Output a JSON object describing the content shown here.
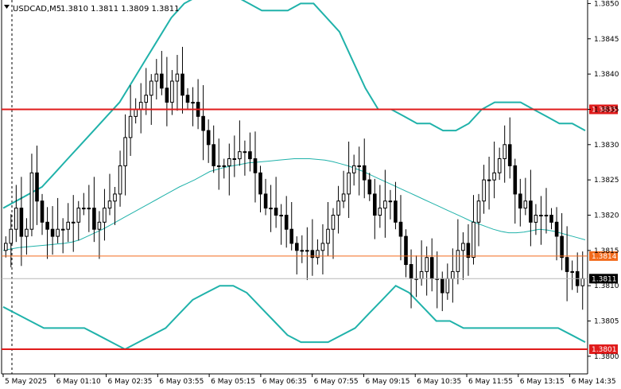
{
  "header": {
    "symbol_timeframe": "USDCAD,M5",
    "ohlc": "1.3810 1.3811 1.3809 1.3811"
  },
  "chart_data": {
    "type": "candlestick",
    "symbol": "USDCAD",
    "timeframe": "M5",
    "ylim": [
      1.37975,
      1.38505
    ],
    "y_ticks": [
      "1.3850",
      "1.3845",
      "1.3840",
      "1.3835",
      "1.3830",
      "1.3825",
      "1.3820",
      "1.3815",
      "1.3810",
      "1.3805",
      "1.3800"
    ],
    "x_ticks": [
      "5 May 2025",
      "6 May 01:10",
      "6 May 02:35",
      "6 May 03:55",
      "6 May 05:15",
      "6 May 06:35",
      "6 May 07:55",
      "6 May 09:15",
      "6 May 10:35",
      "6 May 11:55",
      "6 May 13:15",
      "6 May 14:35"
    ],
    "levels": [
      {
        "value": 1.3835,
        "label": "1.3835",
        "color": "#e01b1b"
      },
      {
        "value": 1.3801,
        "label": "1.3801",
        "color": "#e01b1b"
      },
      {
        "value": 1.38142,
        "label": "1.3814",
        "color": "#f26a1b"
      }
    ],
    "current_price": {
      "value": 1.3811,
      "label": "1.3811"
    },
    "candle_color": "#000000",
    "band_color": "#20b2aa",
    "close": [
      1.3816,
      1.3818,
      1.3821,
      1.3817,
      1.3818,
      1.3826,
      1.3822,
      1.3819,
      1.3818,
      1.3817,
      1.3818,
      1.3818,
      1.3819,
      1.3819,
      1.3821,
      1.3821,
      1.3821,
      1.3818,
      1.3819,
      1.3821,
      1.3822,
      1.3823,
      1.3827,
      1.3831,
      1.3834,
      1.3835,
      1.3836,
      1.3837,
      1.3839,
      1.384,
      1.3838,
      1.3836,
      1.3839,
      1.384,
      1.3837,
      1.3836,
      1.3836,
      1.3834,
      1.3832,
      1.383,
      1.3827,
      1.3827,
      1.3827,
      1.3828,
      1.3828,
      1.3829,
      1.3829,
      1.3828,
      1.3826,
      1.3823,
      1.3821,
      1.3821,
      1.382,
      1.382,
      1.3818,
      1.3816,
      1.3815,
      1.3815,
      1.3815,
      1.3814,
      1.3815,
      1.3816,
      1.3818,
      1.382,
      1.3822,
      1.3823,
      1.3826,
      1.3827,
      1.3827,
      1.3825,
      1.3823,
      1.382,
      1.3821,
      1.3822,
      1.3822,
      1.3819,
      1.3817,
      1.3813,
      1.3811,
      1.3811,
      1.3812,
      1.3814,
      1.3811,
      1.3811,
      1.3809,
      1.3811,
      1.3812,
      1.3815,
      1.3816,
      1.3814,
      1.3819,
      1.3822,
      1.3825,
      1.3825,
      1.3826,
      1.3828,
      1.383,
      1.3827,
      1.3823,
      1.3821,
      1.3822,
      1.3819,
      1.382,
      1.382,
      1.382,
      1.3819,
      1.3817,
      1.3814,
      1.3812,
      1.3812,
      1.381,
      1.3811
    ],
    "mid_band": [
      1.3815,
      1.38152,
      1.38154,
      1.38155,
      1.38156,
      1.38157,
      1.38158,
      1.38159,
      1.3816,
      1.38162,
      1.38165,
      1.3817,
      1.38175,
      1.3818,
      1.38186,
      1.38192,
      1.38198,
      1.38204,
      1.3821,
      1.38216,
      1.38222,
      1.38228,
      1.38234,
      1.3824,
      1.38245,
      1.3825,
      1.38256,
      1.38262,
      1.38265,
      1.38268,
      1.3827,
      1.38272,
      1.38274,
      1.38275,
      1.38276,
      1.38277,
      1.38278,
      1.38279,
      1.3828,
      1.3828,
      1.3828,
      1.38279,
      1.38278,
      1.38276,
      1.38273,
      1.3827,
      1.38266,
      1.38262,
      1.38257,
      1.38252,
      1.38247,
      1.38242,
      1.38237,
      1.38232,
      1.38227,
      1.38222,
      1.38217,
      1.38212,
      1.38207,
      1.38202,
      1.38197,
      1.38192,
      1.38188,
      1.38184,
      1.3818,
      1.38177,
      1.38175,
      1.38175,
      1.38176,
      1.38178,
      1.3818,
      1.38179,
      1.38177,
      1.38174,
      1.38171,
      1.38168,
      1.38165
    ],
    "upper_band": [
      1.3821,
      1.3822,
      1.3823,
      1.3824,
      1.3826,
      1.3828,
      1.383,
      1.3832,
      1.3834,
      1.3836,
      1.3839,
      1.3842,
      1.3845,
      1.3848,
      1.385,
      1.3851,
      1.3851,
      1.3851,
      1.3851,
      1.385,
      1.3849,
      1.3849,
      1.3849,
      1.385,
      1.385,
      1.3848,
      1.3846,
      1.3842,
      1.3838,
      1.3835,
      1.3835,
      1.3834,
      1.3833,
      1.3833,
      1.3832,
      1.3832,
      1.3833,
      1.3835,
      1.3836,
      1.3836,
      1.3836,
      1.3835,
      1.3834,
      1.3833,
      1.3833,
      1.3832
    ],
    "lower_band": [
      1.3807,
      1.3806,
      1.3805,
      1.3804,
      1.3804,
      1.3804,
      1.3804,
      1.3803,
      1.3802,
      1.3801,
      1.3802,
      1.3803,
      1.3804,
      1.3806,
      1.3808,
      1.3809,
      1.381,
      1.381,
      1.3809,
      1.3807,
      1.3805,
      1.3803,
      1.3802,
      1.3802,
      1.3802,
      1.3803,
      1.3804,
      1.3806,
      1.3808,
      1.381,
      1.3809,
      1.3807,
      1.3805,
      1.3805,
      1.3804,
      1.3804,
      1.3804,
      1.3804,
      1.3804,
      1.3804,
      1.3804,
      1.3804,
      1.3803,
      1.3802
    ]
  }
}
